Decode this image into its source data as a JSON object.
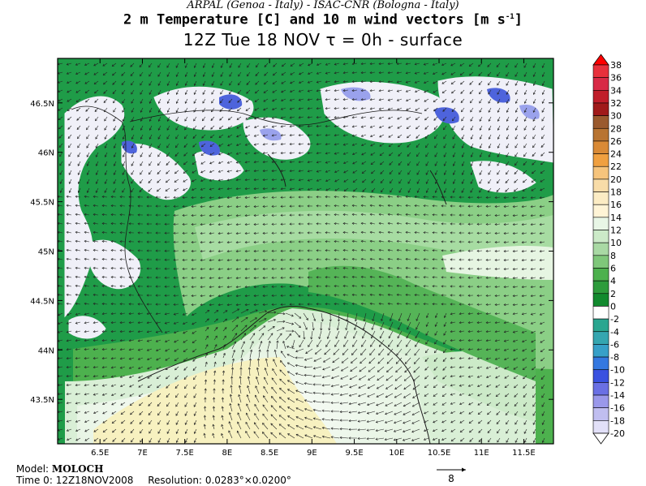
{
  "header": {
    "line1": "ARPAL (Genoa - Italy)  -  ISAC-CNR (Bologna - Italy)",
    "line2_main": "2 m Temperature [C] and 10 m wind vectors [m s",
    "line2_sup": "-1",
    "line2_end": "]",
    "line3": "12Z Tue 18 NOV  τ = 0h  -  surface"
  },
  "footer": {
    "model_label": "Model:",
    "model_value": "MOLOCH",
    "time_label": "Time 0:",
    "time_value": "12Z18NOV2008",
    "resolution_label": "Resolution:",
    "resolution_value": "0.0283°×0.0200°",
    "wind_scale_value": "8"
  },
  "axes": {
    "lon_labels": [
      "6.5E",
      "7E",
      "7.5E",
      "8E",
      "8.5E",
      "9E",
      "9.5E",
      "10E",
      "10.5E",
      "11E",
      "11.5E"
    ],
    "lon_values": [
      6.5,
      7,
      7.5,
      8,
      8.5,
      9,
      9.5,
      10,
      10.5,
      11,
      11.5
    ],
    "lat_labels": [
      "46.5N",
      "46N",
      "45.5N",
      "45N",
      "44.5N",
      "44N",
      "43.5N"
    ],
    "lat_values": [
      46.5,
      46,
      45.5,
      45,
      44.5,
      44,
      43.5
    ],
    "lon_range": [
      6.0,
      11.85
    ],
    "lat_range": [
      43.05,
      46.95
    ]
  },
  "colorbar": {
    "labels": [
      "38",
      "36",
      "34",
      "32",
      "30",
      "28",
      "26",
      "24",
      "22",
      "20",
      "18",
      "16",
      "14",
      "12",
      "10",
      "8",
      "6",
      "4",
      "2",
      "0",
      "-2",
      "-4",
      "-6",
      "-8",
      "-10",
      "-12",
      "-14",
      "-16",
      "-18",
      "-20"
    ],
    "colors": [
      "#ff0000",
      "#e8303c",
      "#d82a46",
      "#c01e2a",
      "#a01a1a",
      "#9a5a2e",
      "#b87432",
      "#d98a36",
      "#f0a040",
      "#f6c47c",
      "#f8dca8",
      "#fcecc4",
      "#fff4d6",
      "#e8f6e6",
      "#cceac8",
      "#a9d9a4",
      "#7fc77a",
      "#4db14e",
      "#2e9c3c",
      "#128a2e",
      "#ffffff",
      "#2aa690",
      "#35a6b0",
      "#37a0c8",
      "#3478e0",
      "#3a52e0",
      "#6a70e4",
      "#9a98ea",
      "#c0bef0",
      "#e2e0f8",
      "#ffffff"
    ]
  },
  "colors": {
    "sea_light": "#eef8ec",
    "sea_pale": "#f8f3c6",
    "land_green": "#1e9a46",
    "land_mid": "#8fcf8a",
    "cold_white": "#f2f2fa",
    "cold_blue": "#5a6ee0"
  }
}
